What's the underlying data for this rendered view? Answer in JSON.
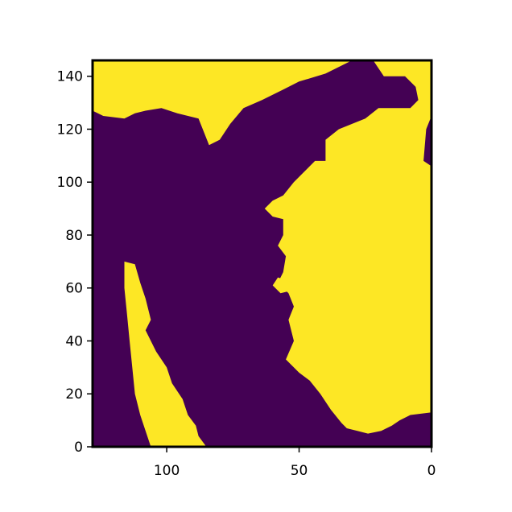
{
  "colors": {
    "background": "#ffffff",
    "low": "#440154",
    "high": "#fde725",
    "frame": "#000000"
  },
  "chart_data": {
    "type": "heatmap",
    "title": "",
    "xlabel": "",
    "ylabel": "",
    "xlim": [
      128,
      0
    ],
    "ylim": [
      0,
      146
    ],
    "x_ticks": [
      {
        "value": 100,
        "label": "100"
      },
      {
        "value": 50,
        "label": "50"
      },
      {
        "value": 0,
        "label": "0"
      }
    ],
    "y_ticks": [
      {
        "value": 0,
        "label": "0"
      },
      {
        "value": 20,
        "label": "20"
      },
      {
        "value": 40,
        "label": "40"
      },
      {
        "value": 60,
        "label": "60"
      },
      {
        "value": 80,
        "label": "80"
      },
      {
        "value": 100,
        "label": "100"
      },
      {
        "value": 120,
        "label": "120"
      },
      {
        "value": 140,
        "label": "140"
      }
    ],
    "colormap": "viridis",
    "values": [
      0,
      1
    ],
    "grid": false,
    "high_value_regions": [
      {
        "name": "land-mass-main",
        "polygon": [
          [
            128,
            146
          ],
          [
            22,
            146
          ],
          [
            18,
            140
          ],
          [
            10,
            140
          ],
          [
            6,
            136
          ],
          [
            5,
            131
          ],
          [
            8,
            128
          ],
          [
            20,
            128
          ],
          [
            25,
            124
          ],
          [
            30,
            122
          ],
          [
            35,
            120
          ],
          [
            40,
            116
          ],
          [
            40,
            108
          ],
          [
            44,
            108
          ],
          [
            48,
            104
          ],
          [
            52,
            100
          ],
          [
            56,
            95
          ],
          [
            60,
            93
          ],
          [
            63,
            90
          ],
          [
            60,
            87
          ],
          [
            56,
            86
          ],
          [
            56,
            80
          ],
          [
            58,
            76
          ],
          [
            55,
            72
          ],
          [
            56,
            66
          ],
          [
            58,
            62
          ],
          [
            54,
            58
          ],
          [
            52,
            53
          ],
          [
            54,
            48
          ],
          [
            52,
            40
          ],
          [
            55,
            33
          ],
          [
            50,
            28
          ],
          [
            46,
            25
          ],
          [
            42,
            20
          ],
          [
            38,
            14
          ],
          [
            34,
            9
          ],
          [
            32,
            7
          ],
          [
            28,
            6
          ],
          [
            24,
            5
          ],
          [
            19,
            6
          ],
          [
            15,
            8
          ],
          [
            12,
            10
          ],
          [
            8,
            12
          ],
          [
            0,
            13
          ],
          [
            0,
            106
          ],
          [
            3,
            108
          ],
          [
            2,
            120
          ],
          [
            0,
            125
          ],
          [
            0,
            146
          ],
          [
            22,
            146
          ],
          [
            30,
            146
          ],
          [
            40,
            141
          ],
          [
            50,
            138
          ],
          [
            56,
            135
          ],
          [
            64,
            131
          ],
          [
            71,
            128
          ],
          [
            76,
            122
          ],
          [
            80,
            116
          ],
          [
            84,
            114
          ],
          [
            88,
            124
          ],
          [
            96,
            126
          ],
          [
            102,
            128
          ],
          [
            108,
            127
          ],
          [
            112,
            126
          ],
          [
            116,
            124
          ],
          [
            124,
            125
          ],
          [
            128,
            127
          ]
        ]
      },
      {
        "name": "island-strip",
        "polygon": [
          [
            116,
            70
          ],
          [
            112,
            69
          ],
          [
            110,
            62
          ],
          [
            108,
            56
          ],
          [
            106,
            48
          ],
          [
            108,
            44
          ],
          [
            104,
            36
          ],
          [
            100,
            30
          ],
          [
            98,
            24
          ],
          [
            94,
            18
          ],
          [
            92,
            12
          ],
          [
            89,
            8
          ],
          [
            88,
            4
          ],
          [
            85,
            0
          ],
          [
            106,
            0
          ],
          [
            108,
            6
          ],
          [
            110,
            12
          ],
          [
            112,
            20
          ],
          [
            113,
            30
          ],
          [
            114,
            40
          ],
          [
            115,
            50
          ],
          [
            116,
            60
          ]
        ]
      },
      {
        "name": "small-island-top-right",
        "polygon": [
          [
            4,
            140
          ],
          [
            8,
            141
          ],
          [
            10,
            144
          ],
          [
            6,
            146
          ],
          [
            2,
            145
          ]
        ]
      },
      {
        "name": "small-island-coast",
        "polygon": [
          [
            52,
            62
          ],
          [
            58,
            64
          ],
          [
            60,
            61
          ],
          [
            57,
            58
          ],
          [
            53,
            59
          ]
        ]
      }
    ]
  }
}
